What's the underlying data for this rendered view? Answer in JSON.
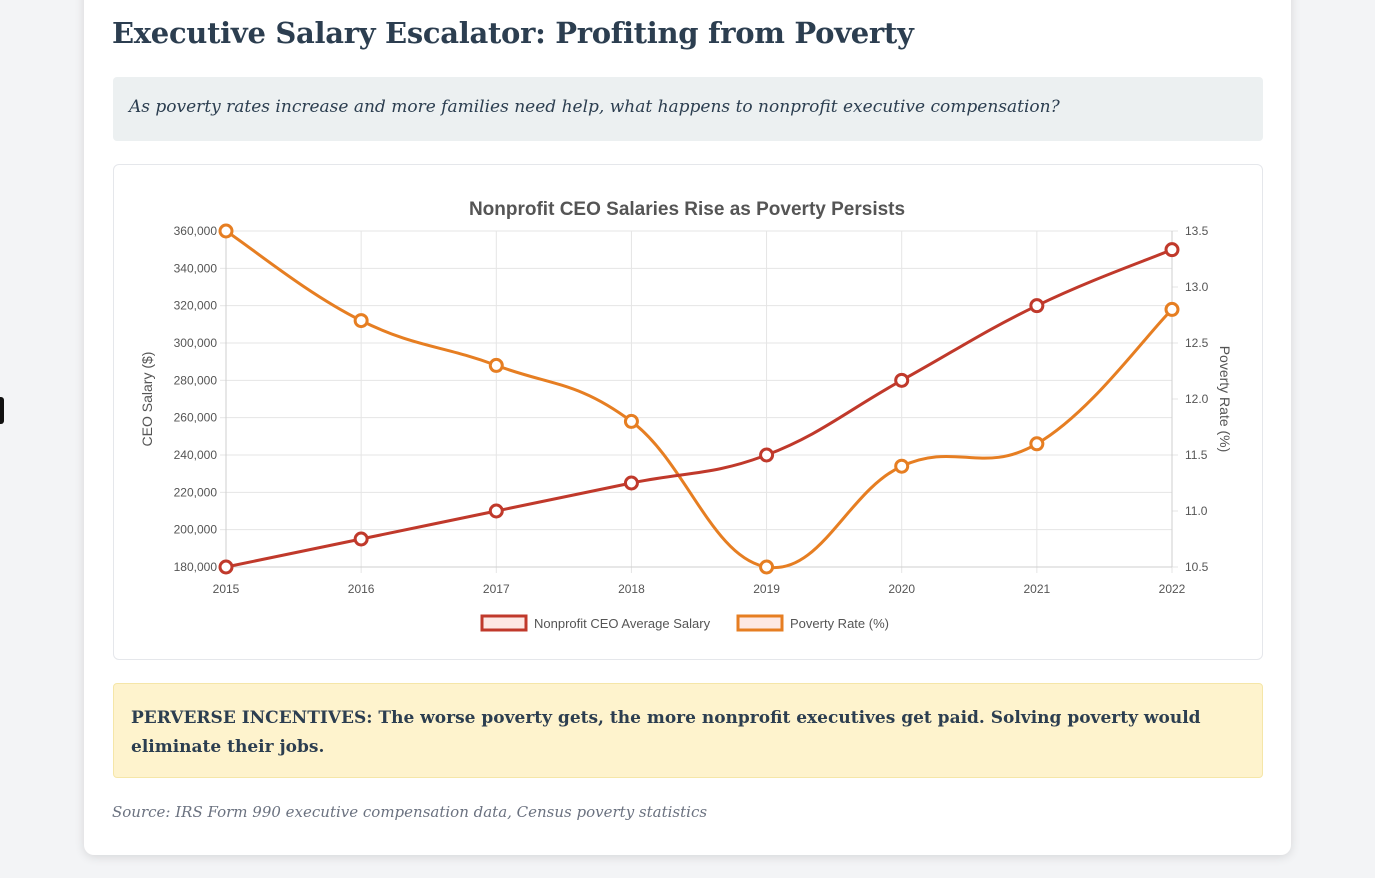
{
  "page": {
    "title": "Executive Salary Escalator: Profiting from Poverty",
    "intro": "As poverty rates increase and more families need help, what happens to nonprofit executive compensation?",
    "warning": "PERVERSE INCENTIVES: The worse poverty gets, the more nonprofit executives get paid. Solving poverty would eliminate their jobs.",
    "source": "Source: IRS Form 990 executive compensation data, Census poverty statistics"
  },
  "colors": {
    "salary": "#c0392b",
    "poverty": "#e67e22",
    "grid": "#e5e5e5"
  },
  "chart_data": {
    "type": "line",
    "title": "Nonprofit CEO Salaries Rise as Poverty Persists",
    "x": [
      "2015",
      "2016",
      "2017",
      "2018",
      "2019",
      "2020",
      "2021",
      "2022"
    ],
    "series": [
      {
        "name": "Nonprofit CEO Average Salary",
        "axis": "left",
        "color": "#c0392b",
        "values": [
          180000,
          195000,
          210000,
          225000,
          240000,
          280000,
          320000,
          350000
        ]
      },
      {
        "name": "Poverty Rate (%)",
        "axis": "right",
        "color": "#e67e22",
        "values": [
          13.5,
          12.7,
          12.3,
          11.8,
          10.5,
          11.4,
          11.6,
          12.8
        ]
      }
    ],
    "ylabel_left": "CEO Salary ($)",
    "ylabel_right": "Poverty Rate (%)",
    "ylim_left": [
      180000,
      360000
    ],
    "yticks_left": [
      "180,000",
      "200,000",
      "220,000",
      "240,000",
      "260,000",
      "280,000",
      "300,000",
      "320,000",
      "340,000",
      "360,000"
    ],
    "ylim_right": [
      10.5,
      13.5
    ],
    "yticks_right": [
      "10.5",
      "11.0",
      "11.5",
      "12.0",
      "12.5",
      "13.0",
      "13.5"
    ],
    "grid": true,
    "legend": "bottom"
  }
}
